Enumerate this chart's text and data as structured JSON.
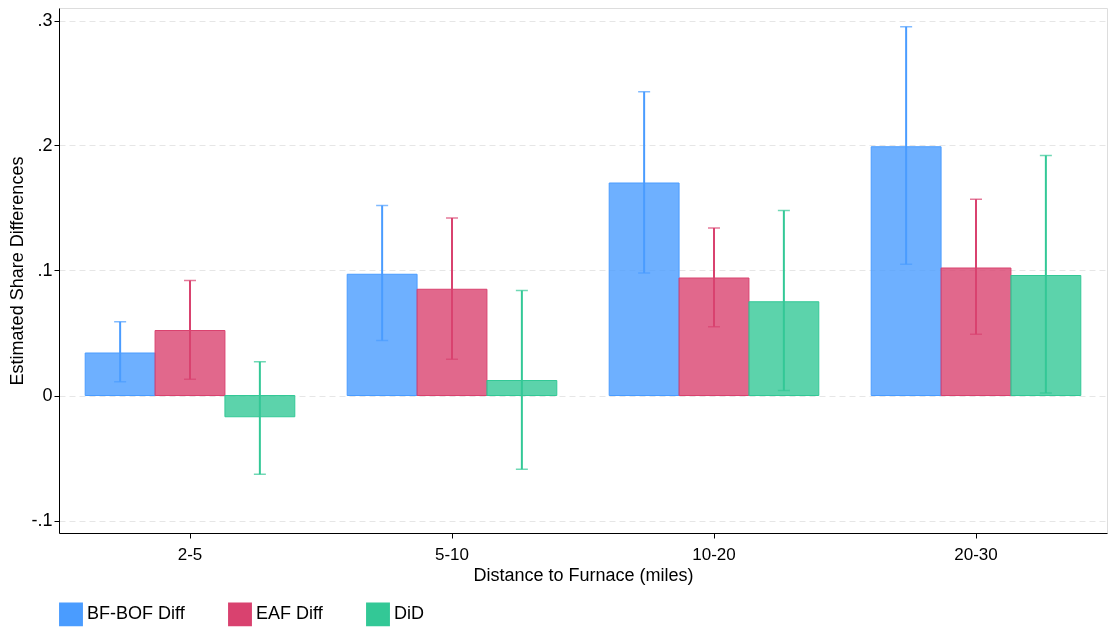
{
  "chart_data": {
    "type": "bar",
    "xlabel": "Distance to Furnace (miles)",
    "ylabel": "Estimated Share Differences",
    "categories": [
      "2-5",
      "5-10",
      "10-20",
      "20-30"
    ],
    "series": [
      {
        "name": "BF-BOF Diff",
        "color": "#4a9cff",
        "values": [
          0.034,
          0.097,
          0.17,
          0.199
        ],
        "errors": [
          [
            0.011,
            0.059
          ],
          [
            0.044,
            0.152
          ],
          [
            0.098,
            0.243
          ],
          [
            0.105,
            0.295
          ]
        ]
      },
      {
        "name": "EAF Diff",
        "color": "#d9426f",
        "values": [
          0.052,
          0.085,
          0.094,
          0.102
        ],
        "errors": [
          [
            0.013,
            0.092
          ],
          [
            0.029,
            0.142
          ],
          [
            0.055,
            0.134
          ],
          [
            0.049,
            0.157
          ]
        ]
      },
      {
        "name": "DiD",
        "color": "#33c896",
        "values": [
          -0.017,
          0.012,
          0.075,
          0.096
        ],
        "errors": [
          [
            -0.063,
            0.027
          ],
          [
            -0.059,
            0.084
          ],
          [
            0.004,
            0.148
          ],
          [
            0.002,
            0.192
          ]
        ]
      }
    ],
    "ylim": [
      -0.11,
      0.31
    ],
    "yticks": [
      {
        "value": -0.1,
        "label": "-.1"
      },
      0,
      {
        "value": 0.1,
        "label": ".1"
      },
      {
        "value": 0.2,
        "label": ".2"
      },
      {
        "value": 0.3,
        "label": ".3"
      }
    ],
    "grid": "y",
    "legend": "bottom"
  }
}
